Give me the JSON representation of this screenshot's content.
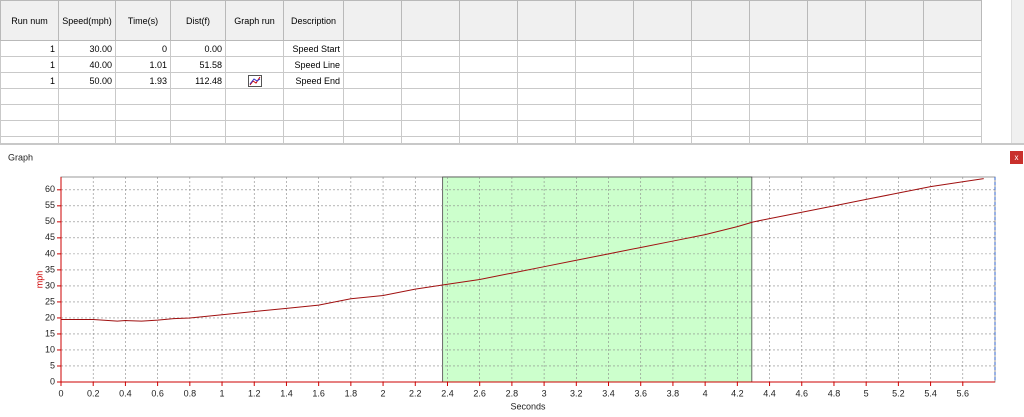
{
  "table": {
    "headers": [
      "Run num",
      "Speed(mph)",
      "Time(s)",
      "Dist(f)",
      "Graph run",
      "Description"
    ],
    "rows": [
      {
        "run": "1",
        "speed": "30.00",
        "time": "0",
        "dist": "0.00",
        "description": "Speed Start"
      },
      {
        "run": "1",
        "speed": "40.00",
        "time": "1.01",
        "dist": "51.58",
        "description": "Speed Line"
      },
      {
        "run": "1",
        "speed": "50.00",
        "time": "1.93",
        "dist": "112.48",
        "description": "Speed End"
      }
    ]
  },
  "panel": {
    "title": "Graph",
    "close_label": "x"
  },
  "chart_data": {
    "type": "line",
    "x_label": "Seconds",
    "y_label": "mph",
    "x": [
      0,
      0.2,
      0.35,
      0.4,
      0.5,
      0.6,
      0.7,
      0.8,
      1,
      1.2,
      1.4,
      1.6,
      1.8,
      2,
      2.2,
      2.4,
      2.6,
      2.8,
      3,
      3.2,
      3.4,
      3.6,
      3.8,
      4,
      4.2,
      4.3,
      4.4,
      4.6,
      4.8,
      5,
      5.2,
      5.4,
      5.6,
      5.73
    ],
    "values": [
      19.5,
      19.5,
      19,
      19.2,
      19,
      19.3,
      19.8,
      20,
      21,
      22,
      23,
      24,
      26,
      27,
      29,
      30.5,
      32,
      34,
      36,
      38,
      40,
      42,
      44,
      46,
      48.5,
      50,
      51,
      53,
      55,
      57,
      59,
      61,
      62.5,
      63.5
    ],
    "color": "#a01010",
    "axis_color": "#cc0000",
    "xlim": [
      0,
      5.8
    ],
    "ylim": [
      0,
      64
    ],
    "xticks": [
      0,
      0.2,
      0.4,
      0.6,
      0.8,
      1,
      1.2,
      1.4,
      1.6,
      1.8,
      2,
      2.2,
      2.4,
      2.6,
      2.8,
      3,
      3.2,
      3.4,
      3.6,
      3.8,
      4,
      4.2,
      4.4,
      4.6,
      4.8,
      5,
      5.2,
      5.4,
      5.6
    ],
    "yticks": [
      0,
      5,
      10,
      15,
      20,
      25,
      30,
      35,
      40,
      45,
      50,
      55,
      60
    ],
    "grid": true,
    "highlight": {
      "from": 2.37,
      "to": 4.29,
      "color": "#ccffcc"
    }
  }
}
